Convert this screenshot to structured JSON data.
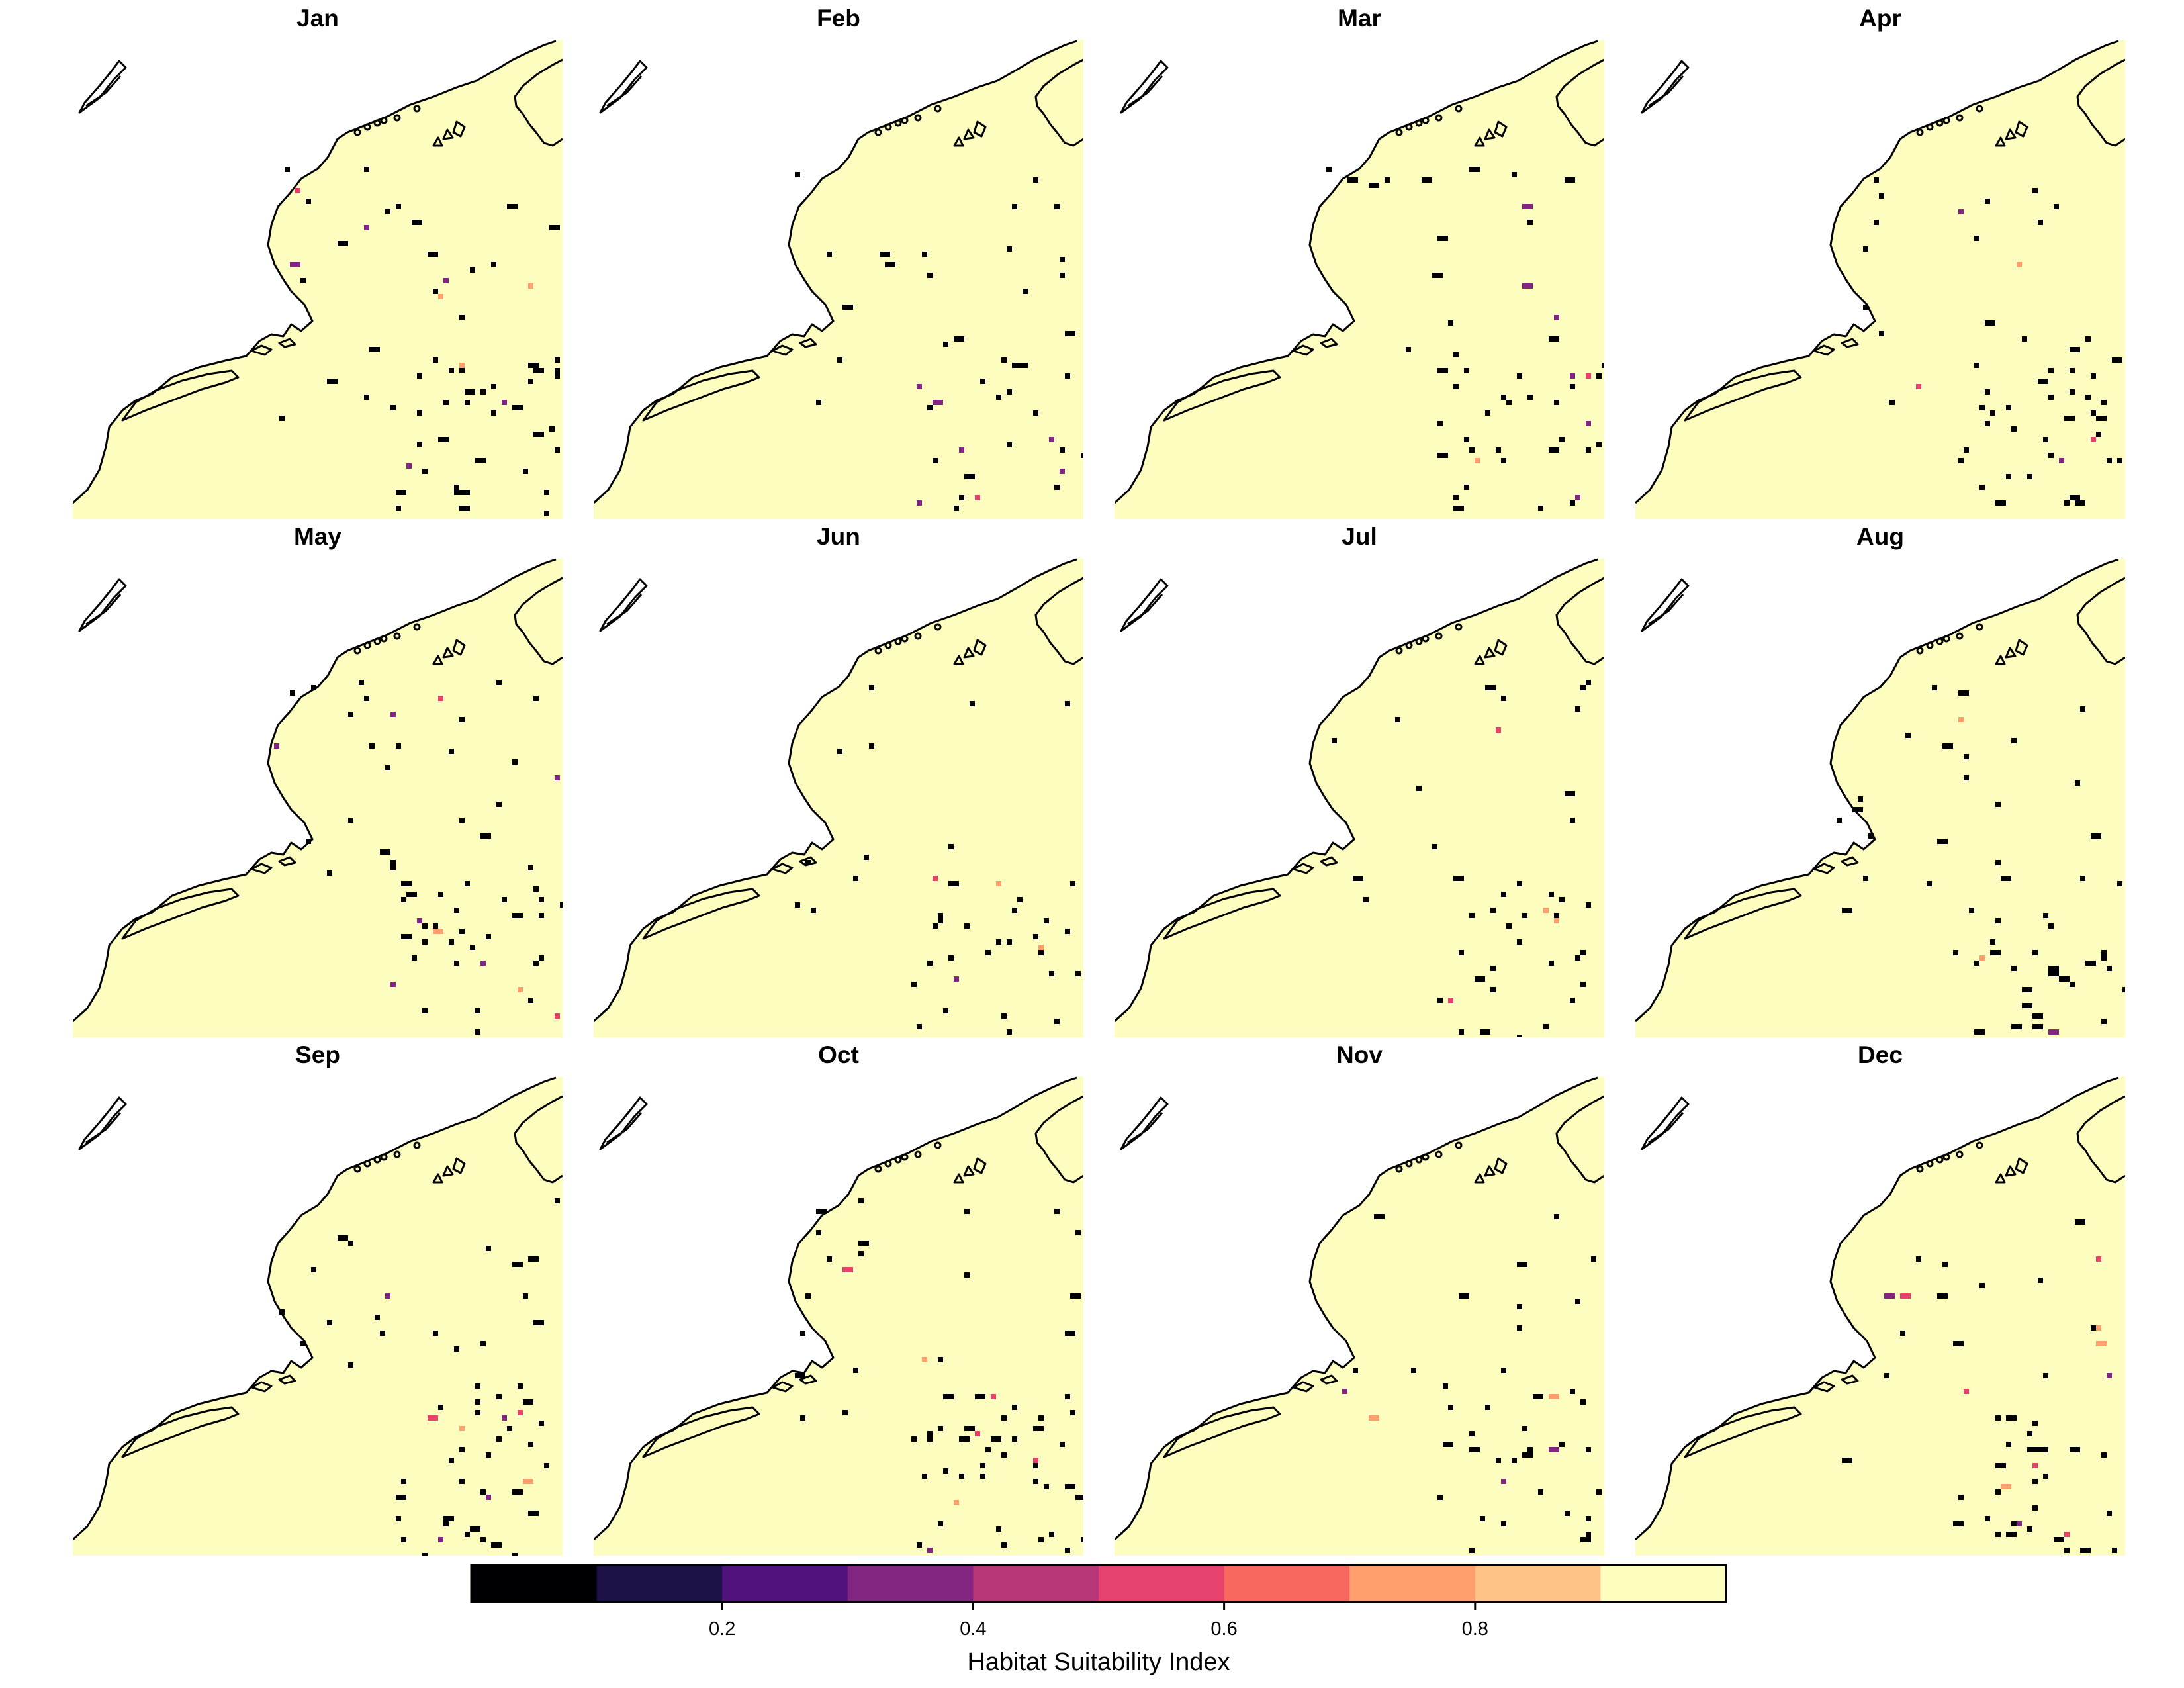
{
  "panels": [
    {
      "title": "Jan"
    },
    {
      "title": "Feb"
    },
    {
      "title": "Mar"
    },
    {
      "title": "Apr"
    },
    {
      "title": "May"
    },
    {
      "title": "Jun"
    },
    {
      "title": "Jul"
    },
    {
      "title": "Aug"
    },
    {
      "title": "Sep"
    },
    {
      "title": "Oct"
    },
    {
      "title": "Nov"
    },
    {
      "title": "Dec"
    }
  ],
  "colors": {
    "habitat_fill": "#fcfdbf",
    "coastline": "#000000",
    "background": "#ffffff"
  },
  "legend": {
    "title": "Habitat Suitability Index",
    "bins": [
      {
        "range": [
          0.0,
          0.1
        ],
        "color": "#000004"
      },
      {
        "range": [
          0.1,
          0.2
        ],
        "color": "#1d1147"
      },
      {
        "range": [
          0.2,
          0.3
        ],
        "color": "#51127c"
      },
      {
        "range": [
          0.3,
          0.4
        ],
        "color": "#822681"
      },
      {
        "range": [
          0.4,
          0.5
        ],
        "color": "#b73779"
      },
      {
        "range": [
          0.5,
          0.6
        ],
        "color": "#e7426e"
      },
      {
        "range": [
          0.6,
          0.7
        ],
        "color": "#f8675d"
      },
      {
        "range": [
          0.7,
          0.8
        ],
        "color": "#fe9f6d"
      },
      {
        "range": [
          0.8,
          0.9
        ],
        "color": "#fec287"
      },
      {
        "range": [
          0.9,
          1.0
        ],
        "color": "#fcfdbf"
      }
    ],
    "ticks": [
      "0.2",
      "0.4",
      "0.6",
      "0.8"
    ],
    "tick_values": [
      0.2,
      0.4,
      0.6,
      0.8
    ]
  }
}
